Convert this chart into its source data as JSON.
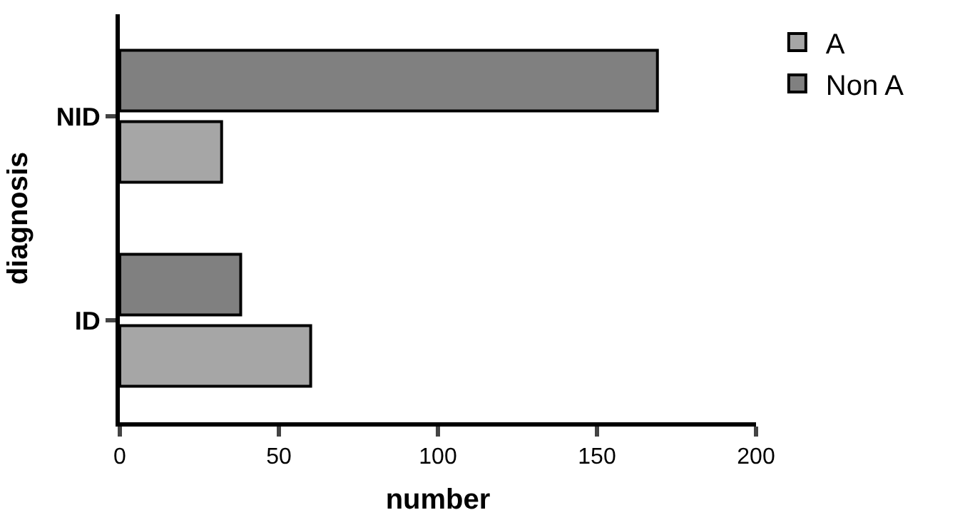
{
  "chart_data": {
    "type": "bar",
    "orientation": "horizontal",
    "xlabel": "number",
    "ylabel": "diagnosis",
    "categories": [
      "NID",
      "ID"
    ],
    "series": [
      {
        "name": "A",
        "color": "#a6a6a6",
        "values": [
          32,
          60
        ]
      },
      {
        "name": "Non A",
        "color": "#808080",
        "values": [
          169,
          38
        ]
      }
    ],
    "xlim": [
      0,
      200
    ],
    "xticks": [
      0,
      50,
      100,
      150,
      200
    ],
    "legend": "top right"
  }
}
